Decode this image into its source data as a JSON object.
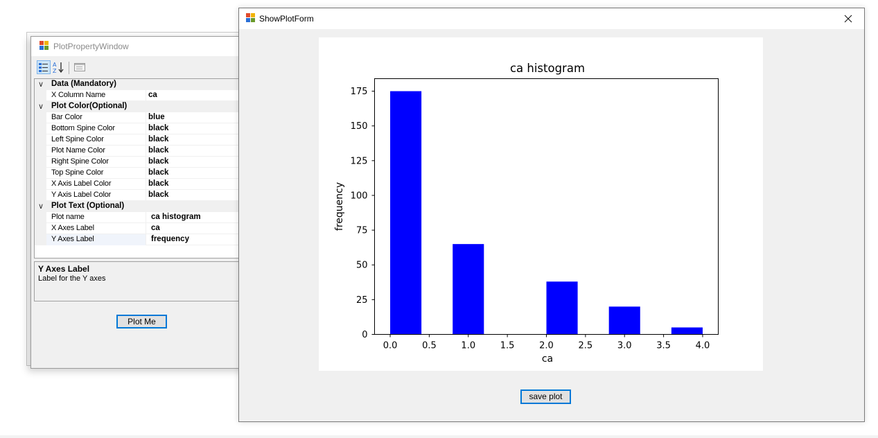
{
  "property_window": {
    "title": "PlotPropertyWindow",
    "toolbar": {
      "categorized_icon": "categorized-view-icon",
      "alphabetical_icon": "alphabetical-sort-icon",
      "pages_icon": "property-pages-icon"
    },
    "categories": [
      {
        "label": "Data (Mandatory)",
        "properties": [
          {
            "name": "X Column Name",
            "value": "ca"
          }
        ]
      },
      {
        "label": "Plot Color(Optional)",
        "properties": [
          {
            "name": "Bar Color",
            "value": "blue"
          },
          {
            "name": "Bottom Spine Color",
            "value": "black"
          },
          {
            "name": "Left Spine Color",
            "value": "black"
          },
          {
            "name": "Plot Name Color",
            "value": "black"
          },
          {
            "name": "Right Spine Color",
            "value": "black"
          },
          {
            "name": "Top Spine Color",
            "value": "black"
          },
          {
            "name": "X Axis Label Color",
            "value": "black"
          },
          {
            "name": "Y Axis Label Color",
            "value": "black"
          }
        ]
      },
      {
        "label": "Plot Text (Optional)",
        "properties": [
          {
            "name": "Plot name",
            "value": "ca histogram"
          },
          {
            "name": "X Axes Label",
            "value": "ca"
          },
          {
            "name": "Y Axes Label",
            "value": "frequency"
          }
        ]
      }
    ],
    "description": {
      "title": "Y Axes Label",
      "text": "Label for the Y axes"
    },
    "plot_button_label": "Plot Me"
  },
  "plot_window": {
    "title": "ShowPlotForm",
    "close_icon": "close-icon",
    "save_button_label": "save plot"
  },
  "colors": {
    "bar": "#0000ff",
    "accent": "#0078d7"
  },
  "chart_data": {
    "type": "bar",
    "title": "ca histogram",
    "xlabel": "ca",
    "ylabel": "frequency",
    "bins": [
      {
        "start": 0.0,
        "end": 0.4,
        "value": 175
      },
      {
        "start": 0.8,
        "end": 1.2,
        "value": 65
      },
      {
        "start": 2.0,
        "end": 2.4,
        "value": 38
      },
      {
        "start": 2.8,
        "end": 3.2,
        "value": 20
      },
      {
        "start": 3.6,
        "end": 4.0,
        "value": 5
      }
    ],
    "xlim": [
      -0.2,
      4.2
    ],
    "ylim": [
      0,
      184
    ],
    "xticks": [
      "0.0",
      "0.5",
      "1.0",
      "1.5",
      "2.0",
      "2.5",
      "3.0",
      "3.5",
      "4.0"
    ],
    "yticks": [
      "0",
      "25",
      "50",
      "75",
      "100",
      "125",
      "150",
      "175"
    ],
    "grid": false
  }
}
